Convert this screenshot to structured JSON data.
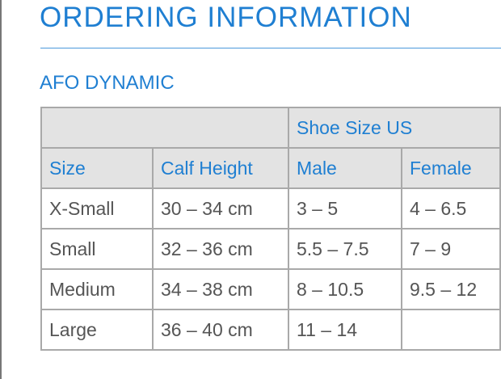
{
  "title": "ORDERING INFORMATION",
  "subtitle": "AFO DYNAMIC",
  "table": {
    "group_header": "Shoe Size US",
    "headers": [
      "Size",
      "Calf Height",
      "Male",
      "Female"
    ],
    "rows": [
      [
        "X-Small",
        "30 – 34 cm",
        "3 – 5",
        "4 – 6.5"
      ],
      [
        "Small",
        "32 – 36 cm",
        "5.5 – 7.5",
        "7 – 9"
      ],
      [
        "Medium",
        "34 – 38 cm",
        "8 – 10.5",
        "9.5 – 12"
      ],
      [
        "Large",
        "36 – 40 cm",
        "11 – 14",
        ""
      ]
    ]
  },
  "colors": {
    "accent": "#1f7fd2",
    "header_bg": "#e3e3e3",
    "text": "#555555"
  }
}
